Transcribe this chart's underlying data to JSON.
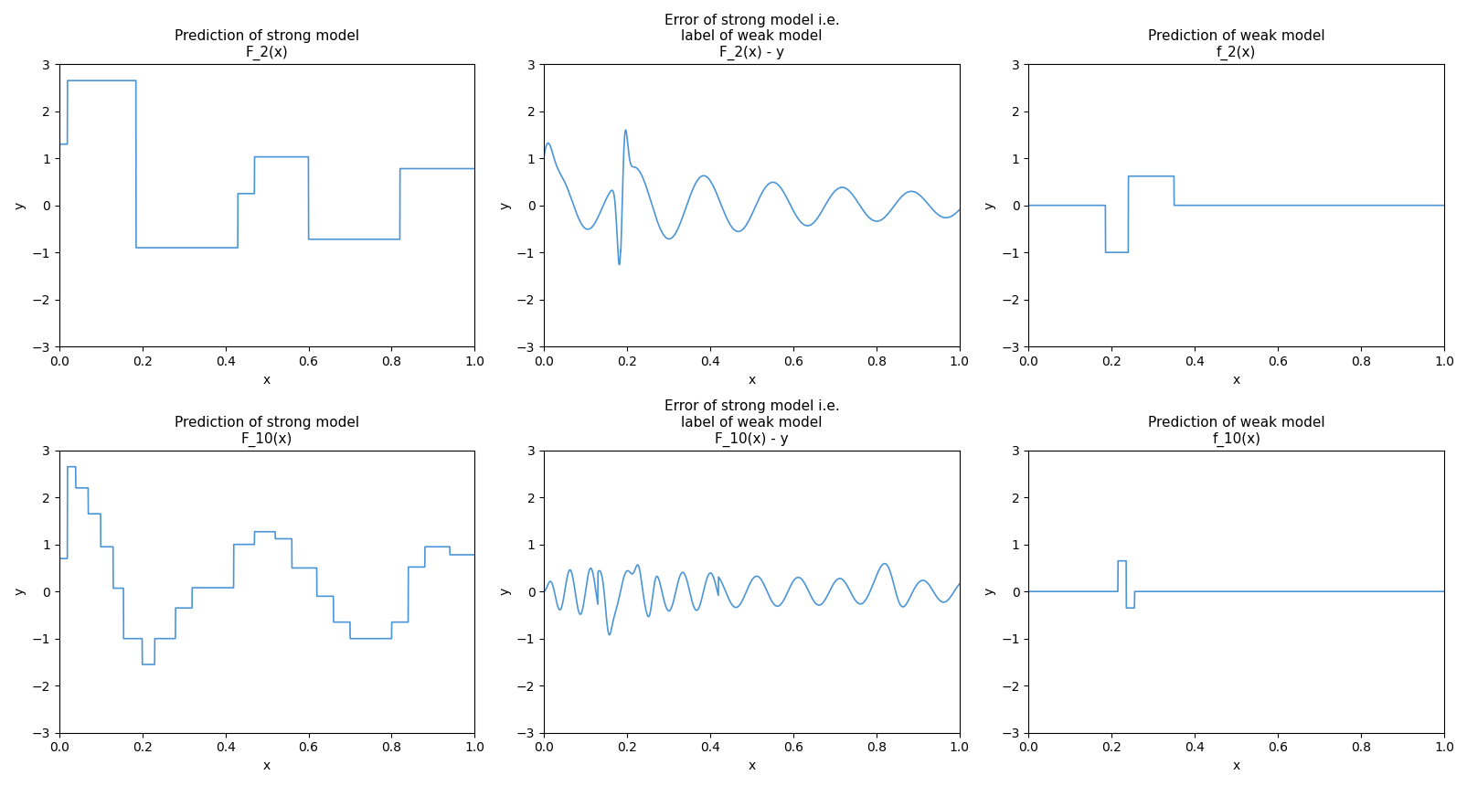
{
  "title_00": "Prediction of strong model\nF_2(x)",
  "title_01": "Error of strong model i.e.\nlabel of weak model\nF_2(x) - y",
  "title_02": "Prediction of weak model\nf_2(x)",
  "title_10": "Prediction of strong model\nF_10(x)",
  "title_11": "Error of strong model i.e.\nlabel of weak model\nF_10(x) - y",
  "title_12": "Prediction of weak model\nf_10(x)",
  "line_color": "#4c96d7",
  "ylim": [
    -3,
    3
  ],
  "xlim": [
    0.0,
    1.0
  ]
}
